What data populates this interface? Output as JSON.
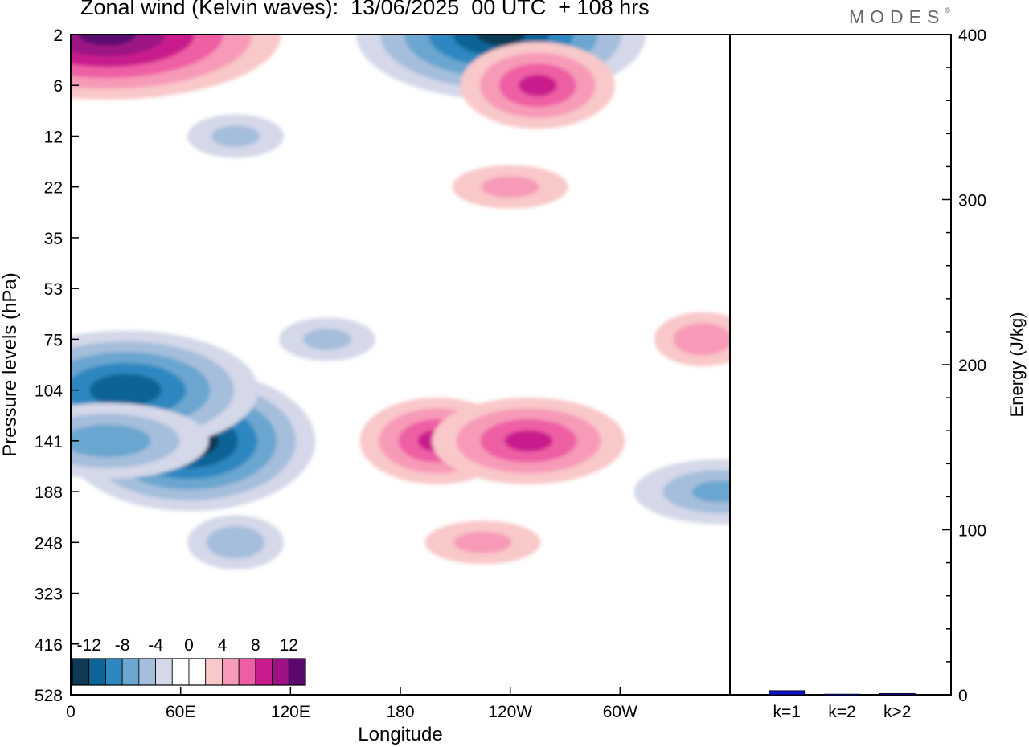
{
  "header": {
    "title": "Zonal wind (Kelvin waves):  13/06/2025  00 UTC  + 108 hrs",
    "logo": "MODES",
    "logo_mark": "©"
  },
  "colors": {
    "negative": [
      "#0e3a55",
      "#0d6496",
      "#2e87c0",
      "#6aa6cf",
      "#a5bedc",
      "#d4d8e8"
    ],
    "neutral": "#ffffff",
    "positive": [
      "#f9c8c8",
      "#f79ab8",
      "#ee5ea4",
      "#c91c8c",
      "#9c1283",
      "#5a0a6e"
    ],
    "bar": "#1010cc"
  },
  "chart_data": [
    {
      "type": "heatmap",
      "title": "Zonal wind (Kelvin waves):  13/06/2025  00 UTC  + 108 hrs",
      "xlabel": "Longitude",
      "ylabel": "Pressure levels (hPa)",
      "x_ticks": [
        "0",
        "60E",
        "120E",
        "180",
        "120W",
        "60W"
      ],
      "x_tick_lon": [
        0,
        60,
        120,
        180,
        240,
        300
      ],
      "xlim": [
        0,
        360
      ],
      "y_ticks": [
        "2",
        "6",
        "12",
        "22",
        "35",
        "53",
        "75",
        "104",
        "141",
        "188",
        "248",
        "323",
        "416",
        "528"
      ],
      "colorbar": {
        "labels": [
          "-12",
          "-8",
          "-4",
          "0",
          "4",
          "8",
          "12"
        ],
        "levels": [
          -14,
          -12,
          -10,
          -8,
          -6,
          -4,
          -2,
          2,
          4,
          6,
          8,
          10,
          12,
          14
        ]
      },
      "features": [
        {
          "lon": 65,
          "level": "141",
          "value": -13
        },
        {
          "lon": 30,
          "level": "104",
          "value": -11
        },
        {
          "lon": 20,
          "level": "141",
          "value": -7
        },
        {
          "lon": 90,
          "level": "248",
          "value": -5
        },
        {
          "lon": 140,
          "level": "75",
          "value": -4
        },
        {
          "lon": 355,
          "level": "188",
          "value": -6
        },
        {
          "lon": 200,
          "level": "141",
          "value": 8
        },
        {
          "lon": 250,
          "level": "141",
          "value": 8
        },
        {
          "lon": 225,
          "level": "248",
          "value": 4
        },
        {
          "lon": 345,
          "level": "75",
          "value": 5
        },
        {
          "lon": 235,
          "level": "2",
          "value": -12
        },
        {
          "lon": 20,
          "level": "2",
          "value": 12
        },
        {
          "lon": 255,
          "level": "6",
          "value": 8
        },
        {
          "lon": 90,
          "level": "12",
          "value": -4
        },
        {
          "lon": 240,
          "level": "22",
          "value": 4
        }
      ]
    },
    {
      "type": "bar",
      "ylabel": "Energy (J/kg)",
      "categories": [
        "k=1",
        "k=2",
        "k>2"
      ],
      "values": [
        2.5,
        0.4,
        0.8
      ],
      "ylim": [
        0,
        400
      ],
      "y_ticks": [
        "0",
        "100",
        "200",
        "300",
        "400"
      ]
    }
  ]
}
